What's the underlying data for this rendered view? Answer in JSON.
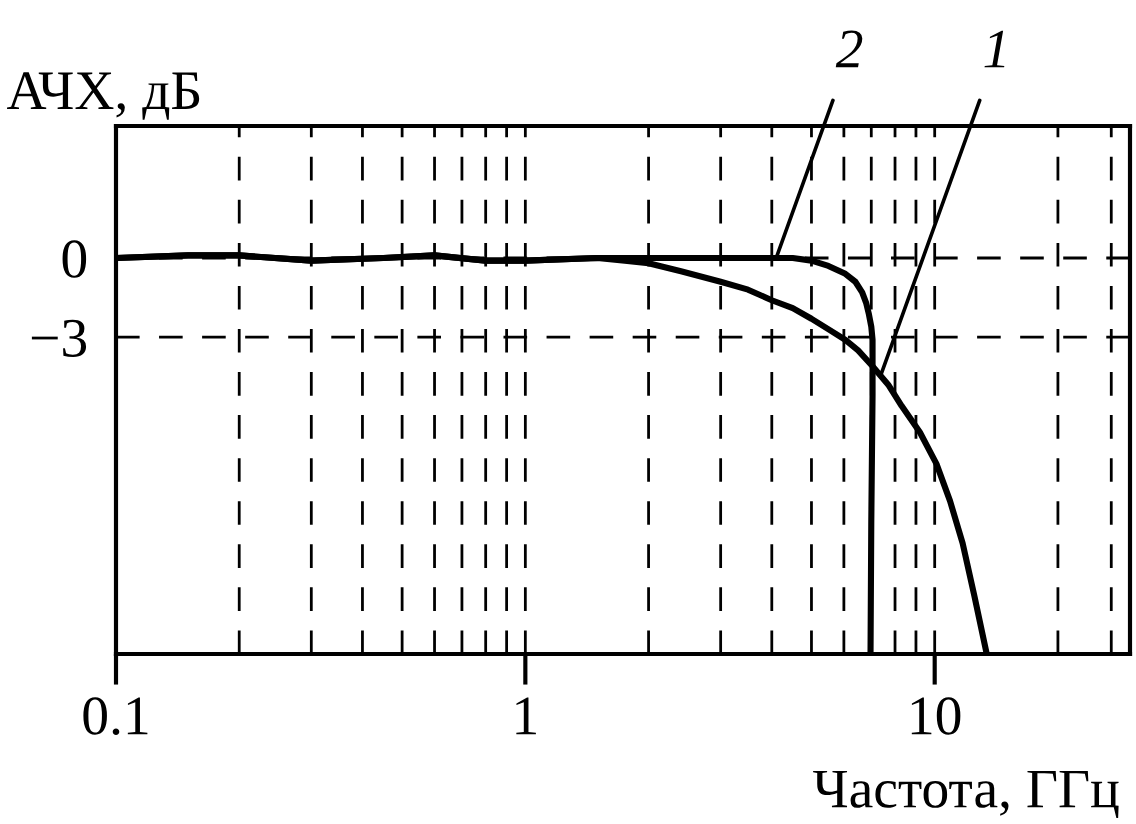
{
  "chart_data": {
    "type": "line",
    "xlabel": "Частота, ГГц",
    "ylabel": "АЧХ, дБ",
    "log": "x",
    "grid": true,
    "line_style": "solid",
    "xlim": [
      0.1,
      30
    ],
    "xticks": [
      0.1,
      {
        "value": 0.2,
        "label": null
      },
      {
        "value": 0.3,
        "label": null
      },
      {
        "value": 0.4,
        "label": null
      },
      {
        "value": 0.5,
        "label": null
      },
      {
        "value": 0.6,
        "label": null
      },
      {
        "value": 0.7,
        "label": null
      },
      {
        "value": 0.8,
        "label": null
      },
      {
        "value": 0.9,
        "label": null
      },
      1,
      {
        "value": 2,
        "label": null
      },
      {
        "value": 3,
        "label": null
      },
      {
        "value": 4,
        "label": null
      },
      {
        "value": 5,
        "label": null
      },
      {
        "value": 6,
        "label": null
      },
      {
        "value": 7,
        "label": null
      },
      {
        "value": 8,
        "label": null
      },
      {
        "value": 9,
        "label": null
      },
      10,
      {
        "value": 20,
        "label": null
      },
      {
        "value": 27,
        "label": null
      }
    ],
    "ylim": [
      -15,
      5
    ],
    "yticks": [
      0,
      {
        "value": -3,
        "label": "−3"
      }
    ],
    "series": [
      {
        "color": "#000000",
        "x": [
          0.1,
          0.15,
          0.2,
          0.3,
          0.45,
          0.6,
          0.8,
          1,
          1.5,
          1.75,
          2,
          2.4,
          3,
          3.5,
          4,
          4.5,
          5,
          5.5,
          6.05,
          6.5,
          7.05,
          7.7,
          8.3,
          9.2,
          10.1,
          10.9,
          11.7,
          12.5,
          13.4
        ],
        "values": [
          0,
          0.1,
          0.1,
          -0.1,
          0,
          0.1,
          -0.1,
          -0.1,
          0,
          -0.1,
          -0.2,
          -0.5,
          -0.9,
          -1.2,
          -1.6,
          -1.9,
          -2.3,
          -2.7,
          -3.1,
          -3.5,
          -4.1,
          -4.8,
          -5.6,
          -6.6,
          -7.8,
          -9.2,
          -10.8,
          -12.8,
          -15
        ]
      },
      {
        "color": "#000000",
        "x": [
          0.1,
          0.15,
          0.2,
          0.3,
          0.45,
          0.6,
          0.8,
          1,
          1.5,
          2,
          3,
          4,
          4.5,
          5,
          5.5,
          6.05,
          6.4,
          6.65,
          6.8,
          6.9,
          7.0,
          7.05,
          7.05,
          7.0,
          6.97
        ],
        "values": [
          0,
          0.1,
          0.1,
          -0.1,
          0,
          0.1,
          -0.1,
          -0.1,
          0,
          0,
          0,
          0,
          0,
          -0.1,
          -0.3,
          -0.6,
          -0.9,
          -1.3,
          -1.7,
          -2.1,
          -2.6,
          -3.1,
          -5.2,
          -10,
          -15
        ]
      }
    ],
    "annotations": [
      {
        "text": "2",
        "x": 4.1,
        "y": 0
      },
      {
        "text": "1",
        "x": 7.4,
        "y": -4.4
      }
    ]
  }
}
